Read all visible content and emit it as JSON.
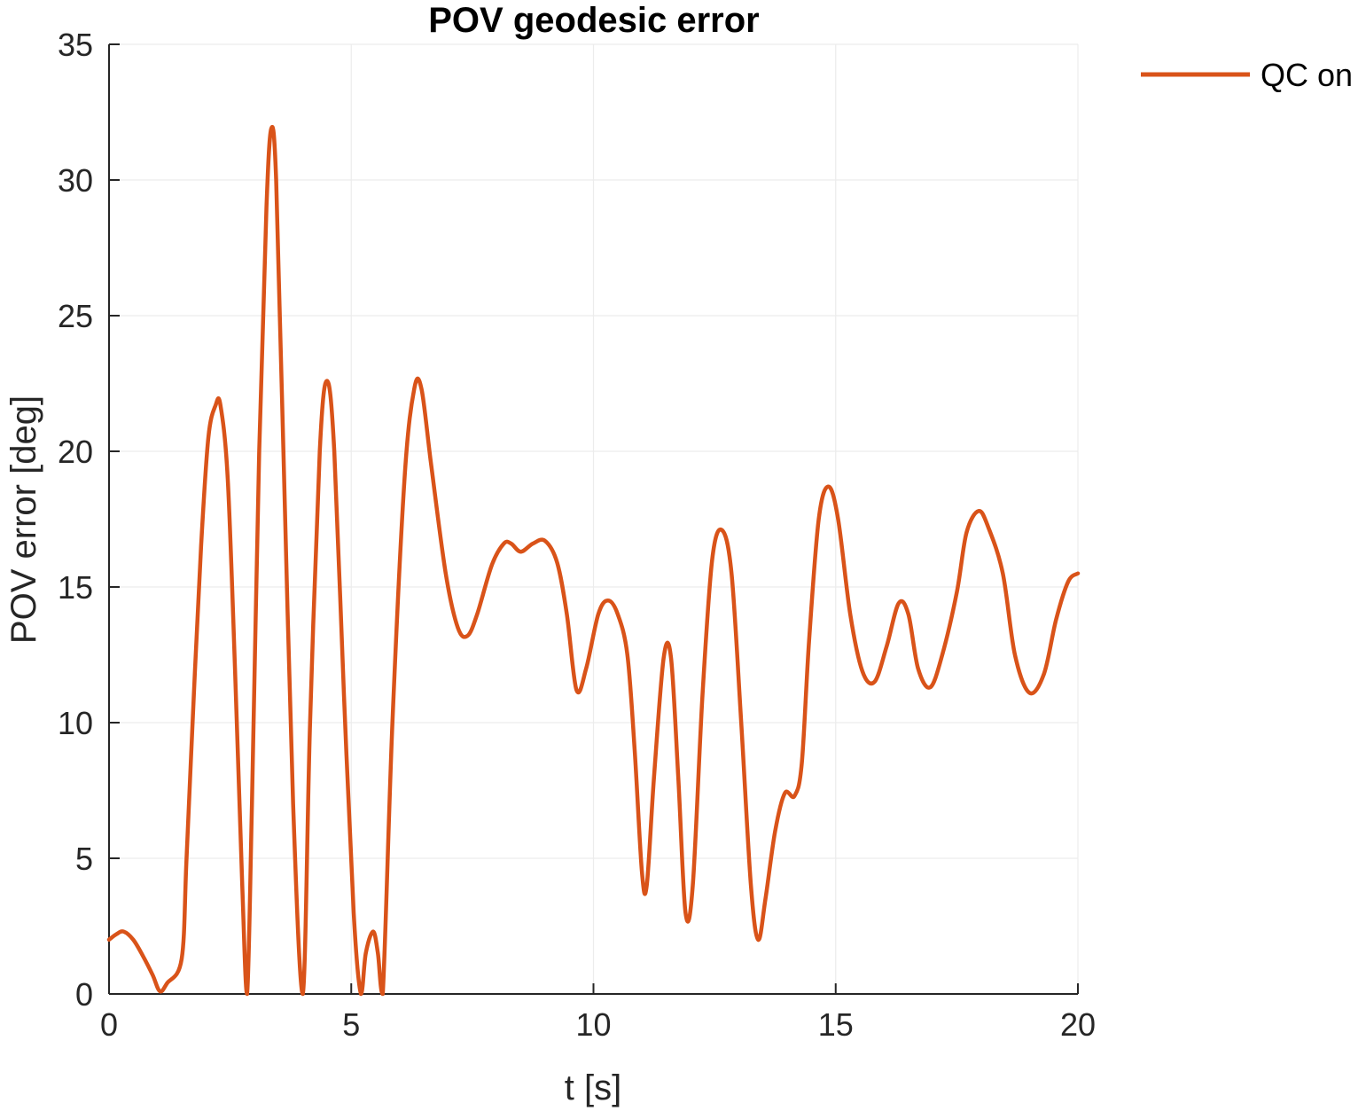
{
  "chart_data": {
    "type": "line",
    "title": "POV geodesic error",
    "xlabel": "t [s]",
    "ylabel": "POV error [deg]",
    "xlim": [
      0,
      20
    ],
    "ylim": [
      0,
      35
    ],
    "xticks": [
      0,
      5,
      10,
      15,
      20
    ],
    "yticks": [
      0,
      5,
      10,
      15,
      20,
      25,
      30,
      35
    ],
    "grid": true,
    "legend_location": "outside top-right",
    "series": [
      {
        "name": "QC on",
        "color": "#D95319",
        "points": [
          [
            0.0,
            2.0
          ],
          [
            0.15,
            2.2
          ],
          [
            0.3,
            2.3
          ],
          [
            0.5,
            2.0
          ],
          [
            0.7,
            1.4
          ],
          [
            0.9,
            0.7
          ],
          [
            1.05,
            0.1
          ],
          [
            1.2,
            0.4
          ],
          [
            1.5,
            1.3
          ],
          [
            1.6,
            5.0
          ],
          [
            1.75,
            11.0
          ],
          [
            1.9,
            16.5
          ],
          [
            2.05,
            20.5
          ],
          [
            2.2,
            21.7
          ],
          [
            2.3,
            21.7
          ],
          [
            2.45,
            19.0
          ],
          [
            2.6,
            12.0
          ],
          [
            2.75,
            4.0
          ],
          [
            2.85,
            0.0
          ],
          [
            2.95,
            7.0
          ],
          [
            3.1,
            20.0
          ],
          [
            3.25,
            29.0
          ],
          [
            3.35,
            31.9
          ],
          [
            3.45,
            30.0
          ],
          [
            3.6,
            20.0
          ],
          [
            3.8,
            7.0
          ],
          [
            4.0,
            0.0
          ],
          [
            4.15,
            10.0
          ],
          [
            4.35,
            20.0
          ],
          [
            4.5,
            22.6
          ],
          [
            4.65,
            20.0
          ],
          [
            4.85,
            11.0
          ],
          [
            5.05,
            3.0
          ],
          [
            5.2,
            0.0
          ],
          [
            5.3,
            1.5
          ],
          [
            5.45,
            2.3
          ],
          [
            5.55,
            1.5
          ],
          [
            5.65,
            0.0
          ],
          [
            5.85,
            10.0
          ],
          [
            6.1,
            19.0
          ],
          [
            6.3,
            22.3
          ],
          [
            6.45,
            22.3
          ],
          [
            6.65,
            19.5
          ],
          [
            6.95,
            15.5
          ],
          [
            7.2,
            13.5
          ],
          [
            7.4,
            13.2
          ],
          [
            7.6,
            14.0
          ],
          [
            7.9,
            15.8
          ],
          [
            8.15,
            16.6
          ],
          [
            8.3,
            16.6
          ],
          [
            8.5,
            16.3
          ],
          [
            8.75,
            16.6
          ],
          [
            9.0,
            16.7
          ],
          [
            9.25,
            15.9
          ],
          [
            9.45,
            14.0
          ],
          [
            9.65,
            11.2
          ],
          [
            9.85,
            12.0
          ],
          [
            10.1,
            14.0
          ],
          [
            10.3,
            14.5
          ],
          [
            10.5,
            14.0
          ],
          [
            10.7,
            12.5
          ],
          [
            10.85,
            9.0
          ],
          [
            11.0,
            4.5
          ],
          [
            11.1,
            4.0
          ],
          [
            11.25,
            8.0
          ],
          [
            11.45,
            12.4
          ],
          [
            11.6,
            12.4
          ],
          [
            11.75,
            8.0
          ],
          [
            11.9,
            3.0
          ],
          [
            12.05,
            4.0
          ],
          [
            12.25,
            11.0
          ],
          [
            12.45,
            16.0
          ],
          [
            12.65,
            17.1
          ],
          [
            12.85,
            15.5
          ],
          [
            13.05,
            10.0
          ],
          [
            13.25,
            4.0
          ],
          [
            13.4,
            2.0
          ],
          [
            13.55,
            3.5
          ],
          [
            13.75,
            6.0
          ],
          [
            13.95,
            7.4
          ],
          [
            14.15,
            7.3
          ],
          [
            14.3,
            8.5
          ],
          [
            14.45,
            13.0
          ],
          [
            14.65,
            17.5
          ],
          [
            14.85,
            18.7
          ],
          [
            15.05,
            17.5
          ],
          [
            15.3,
            14.0
          ],
          [
            15.55,
            11.9
          ],
          [
            15.8,
            11.5
          ],
          [
            16.05,
            12.8
          ],
          [
            16.3,
            14.4
          ],
          [
            16.5,
            14.0
          ],
          [
            16.7,
            12.0
          ],
          [
            16.95,
            11.3
          ],
          [
            17.2,
            12.5
          ],
          [
            17.5,
            14.8
          ],
          [
            17.7,
            17.0
          ],
          [
            17.95,
            17.8
          ],
          [
            18.15,
            17.2
          ],
          [
            18.45,
            15.5
          ],
          [
            18.7,
            12.5
          ],
          [
            19.0,
            11.1
          ],
          [
            19.3,
            11.8
          ],
          [
            19.55,
            13.8
          ],
          [
            19.8,
            15.2
          ],
          [
            20.0,
            15.5
          ]
        ]
      }
    ]
  }
}
